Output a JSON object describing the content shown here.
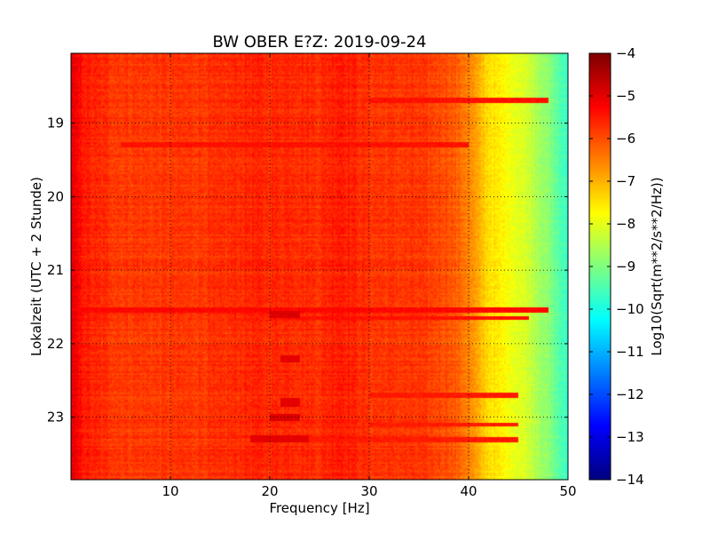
{
  "chart_data": {
    "type": "heatmap",
    "title": "BW OBER E?Z: 2019-09-24",
    "xlabel": "Frequency [Hz]",
    "ylabel": "Lokalzeit (UTC + 2 Stunde)",
    "xlim": [
      0,
      50
    ],
    "ylim": [
      23.85,
      18.05
    ],
    "x_ticks": [
      10,
      20,
      30,
      40,
      50
    ],
    "y_ticks": [
      19,
      20,
      21,
      22,
      23
    ],
    "grid": true,
    "colormap": "jet",
    "colorbar": {
      "label": "Log10(Sqrt(m**2/s**2/Hz))",
      "range": [
        -14,
        -4
      ],
      "ticks": [
        -4,
        -5,
        -6,
        -7,
        -8,
        -9,
        -10,
        -11,
        -12,
        -13,
        -14
      ]
    },
    "spectrum_profile": {
      "frequency_hz": [
        0,
        1,
        2,
        5,
        10,
        15,
        18,
        20,
        22,
        25,
        27,
        30,
        35,
        38,
        40,
        41,
        42,
        44,
        46,
        48,
        50
      ],
      "log10_amplitude": [
        -5.0,
        -5.4,
        -5.6,
        -5.8,
        -5.8,
        -5.75,
        -5.6,
        -5.65,
        -5.6,
        -5.7,
        -5.45,
        -5.75,
        -5.8,
        -6.0,
        -6.5,
        -7.0,
        -7.4,
        -7.8,
        -8.2,
        -8.9,
        -9.8
      ]
    },
    "events": [
      {
        "time": 21.6,
        "frequency_range": [
          20,
          23
        ],
        "log10_amplitude": -4.9
      },
      {
        "time": 22.2,
        "frequency_range": [
          21,
          23
        ],
        "log10_amplitude": -5.0
      },
      {
        "time": 22.8,
        "frequency_range": [
          21,
          23
        ],
        "log10_amplitude": -5.0
      },
      {
        "time": 23.0,
        "frequency_range": [
          20,
          23
        ],
        "log10_amplitude": -4.9
      },
      {
        "time": 23.3,
        "frequency_range": [
          18,
          24
        ],
        "log10_amplitude": -5.0
      }
    ],
    "horizontal_bands": [
      {
        "time": 18.7,
        "frequency_range": [
          30,
          48
        ],
        "log10_amplitude": -5.4
      },
      {
        "time": 19.3,
        "frequency_range": [
          5,
          40
        ],
        "log10_amplitude": -5.4
      },
      {
        "time": 21.55,
        "frequency_range": [
          0,
          48
        ],
        "log10_amplitude": -5.3
      },
      {
        "time": 21.65,
        "frequency_range": [
          20,
          46
        ],
        "log10_amplitude": -5.4
      },
      {
        "time": 22.7,
        "frequency_range": [
          30,
          45
        ],
        "log10_amplitude": -5.5
      },
      {
        "time": 23.1,
        "frequency_range": [
          30,
          45
        ],
        "log10_amplitude": -5.5
      },
      {
        "time": 23.3,
        "frequency_range": [
          18,
          45
        ],
        "log10_amplitude": -5.5
      }
    ]
  }
}
